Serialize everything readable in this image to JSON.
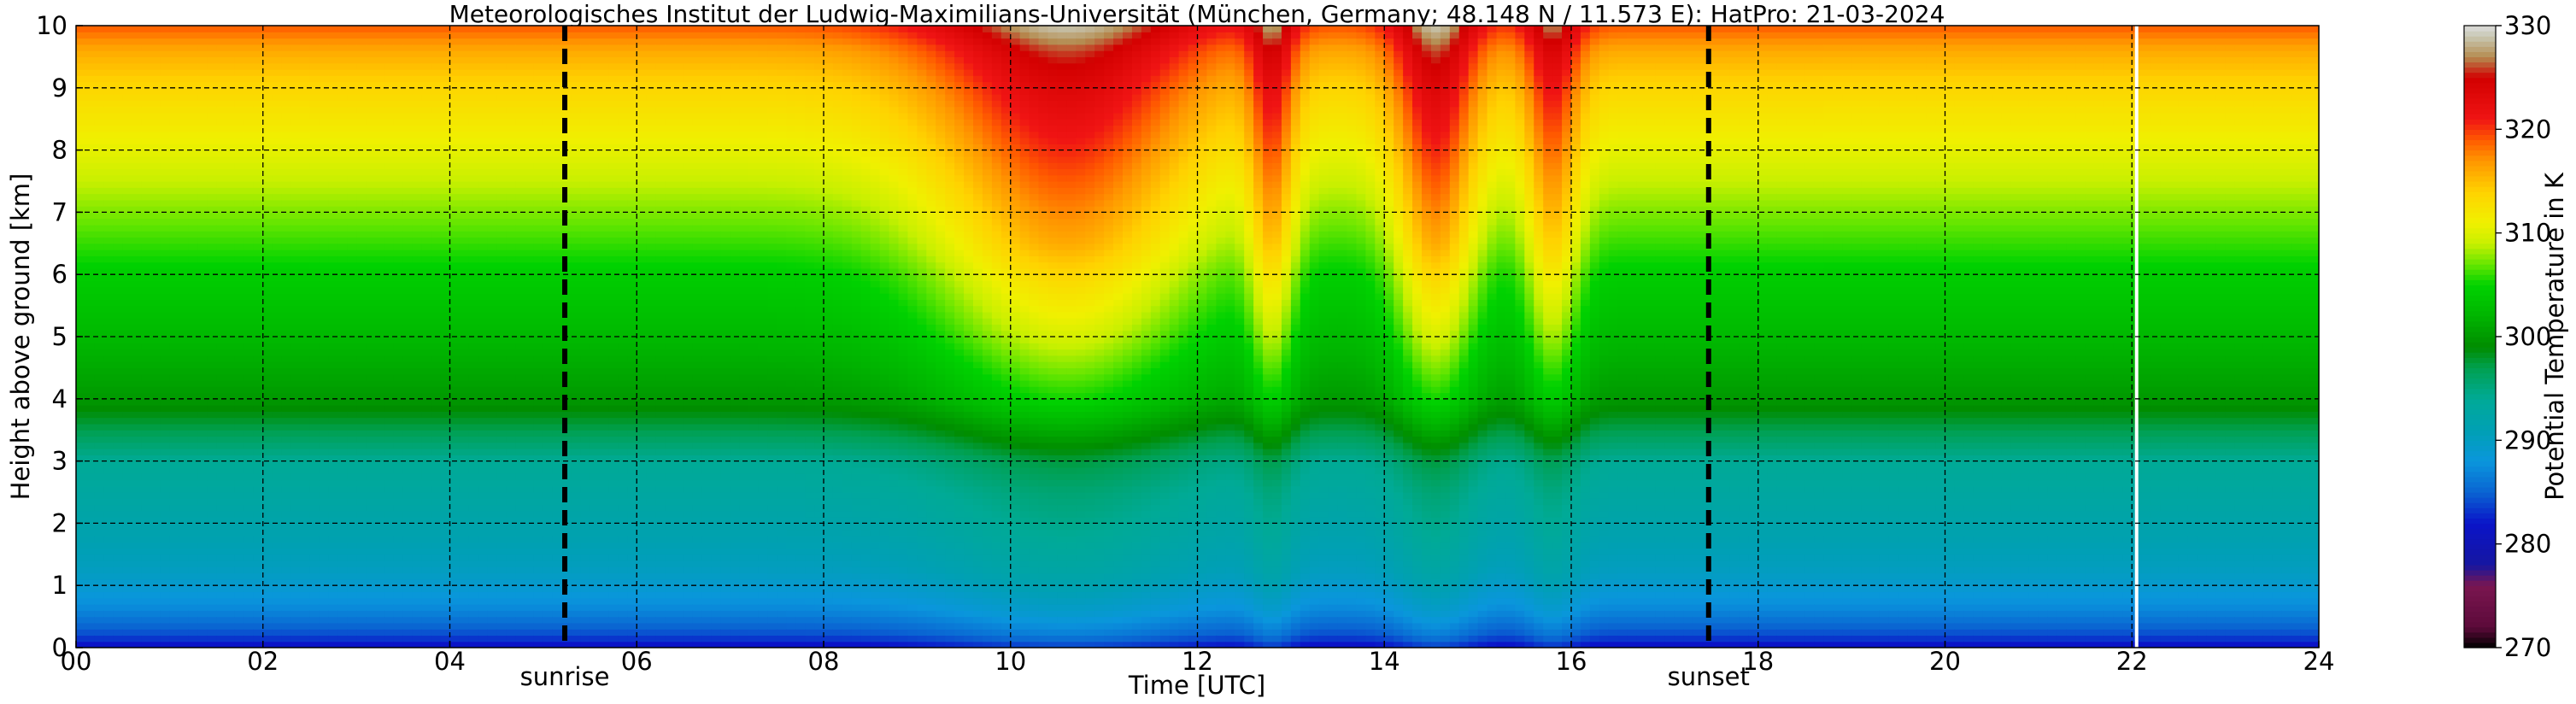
{
  "chart_data": {
    "type": "heatmap",
    "title": "Meteorologisches Institut der Ludwig-Maximilians-Universität (München, Germany; 48.148 N / 11.573 E):    HatPro: 21-03-2024",
    "xlabel": "Time [UTC]",
    "ylabel": "Height above ground [km]",
    "colorbar_label": "Potential Temperature in K",
    "xlim": [
      0,
      24
    ],
    "ylim": [
      0,
      10
    ],
    "clim": [
      270,
      330
    ],
    "x_ticks": [
      0,
      2,
      4,
      6,
      8,
      10,
      12,
      14,
      16,
      18,
      20,
      22,
      24
    ],
    "x_tick_labels": [
      "00",
      "02",
      "04",
      "06",
      "08",
      "10",
      "12",
      "14",
      "16",
      "18",
      "20",
      "22",
      "24"
    ],
    "y_ticks": [
      0,
      1,
      2,
      3,
      4,
      5,
      6,
      7,
      8,
      9,
      10
    ],
    "y_tick_labels": [
      "0",
      "1",
      "2",
      "3",
      "4",
      "5",
      "6",
      "7",
      "8",
      "9",
      "10"
    ],
    "colorbar_ticks": [
      270,
      280,
      290,
      300,
      310,
      320,
      330
    ],
    "colorbar_tick_labels": [
      "270",
      "280",
      "290",
      "300",
      "310",
      "320",
      "330"
    ],
    "grid": true,
    "events": [
      {
        "label": "sunrise",
        "time": 5.23
      },
      {
        "label": "sunset",
        "time": 17.47
      }
    ],
    "data_gap_time": 22.05,
    "base_profile": [
      {
        "height": 0.0,
        "theta": 281
      },
      {
        "height": 0.2,
        "theta": 284
      },
      {
        "height": 0.6,
        "theta": 287
      },
      {
        "height": 1.2,
        "theta": 290
      },
      {
        "height": 2.0,
        "theta": 292
      },
      {
        "height": 3.0,
        "theta": 294
      },
      {
        "height": 3.5,
        "theta": 297
      },
      {
        "height": 4.0,
        "theta": 300
      },
      {
        "height": 5.0,
        "theta": 302.5
      },
      {
        "height": 6.0,
        "theta": 304.5
      },
      {
        "height": 7.0,
        "theta": 307.5
      },
      {
        "height": 8.0,
        "theta": 310.5
      },
      {
        "height": 9.0,
        "theta": 313.5
      },
      {
        "height": 9.6,
        "theta": 316
      },
      {
        "height": 10.0,
        "theta": 319
      }
    ],
    "warm_intrusions": [
      {
        "center": 10.6,
        "width": 1.4,
        "amplitude": 10
      },
      {
        "center": 12.8,
        "width": 0.25,
        "amplitude": 8
      },
      {
        "center": 14.55,
        "width": 0.45,
        "amplitude": 10
      },
      {
        "center": 15.8,
        "width": 0.3,
        "amplitude": 8
      }
    ],
    "colormap": [
      {
        "value": 270,
        "color": "#000000"
      },
      {
        "value": 272,
        "color": "#5c0a3a"
      },
      {
        "value": 276,
        "color": "#7a1650"
      },
      {
        "value": 278,
        "color": "#1616a0"
      },
      {
        "value": 282,
        "color": "#0a14c8"
      },
      {
        "value": 285,
        "color": "#0a64d2"
      },
      {
        "value": 288,
        "color": "#0a96dc"
      },
      {
        "value": 291,
        "color": "#00a0b4"
      },
      {
        "value": 294,
        "color": "#00aa96"
      },
      {
        "value": 297,
        "color": "#00a050"
      },
      {
        "value": 299,
        "color": "#008c00"
      },
      {
        "value": 302,
        "color": "#00b400"
      },
      {
        "value": 305,
        "color": "#00d200"
      },
      {
        "value": 307,
        "color": "#66e600"
      },
      {
        "value": 309,
        "color": "#c8f000"
      },
      {
        "value": 311,
        "color": "#f0f000"
      },
      {
        "value": 314,
        "color": "#ffd200"
      },
      {
        "value": 317,
        "color": "#ff9600"
      },
      {
        "value": 319,
        "color": "#ff5a00"
      },
      {
        "value": 321,
        "color": "#f01414"
      },
      {
        "value": 325,
        "color": "#d20000"
      },
      {
        "value": 327,
        "color": "#b48c50"
      },
      {
        "value": 329,
        "color": "#c8c8b4"
      },
      {
        "value": 330,
        "color": "#dcdcdc"
      }
    ]
  }
}
